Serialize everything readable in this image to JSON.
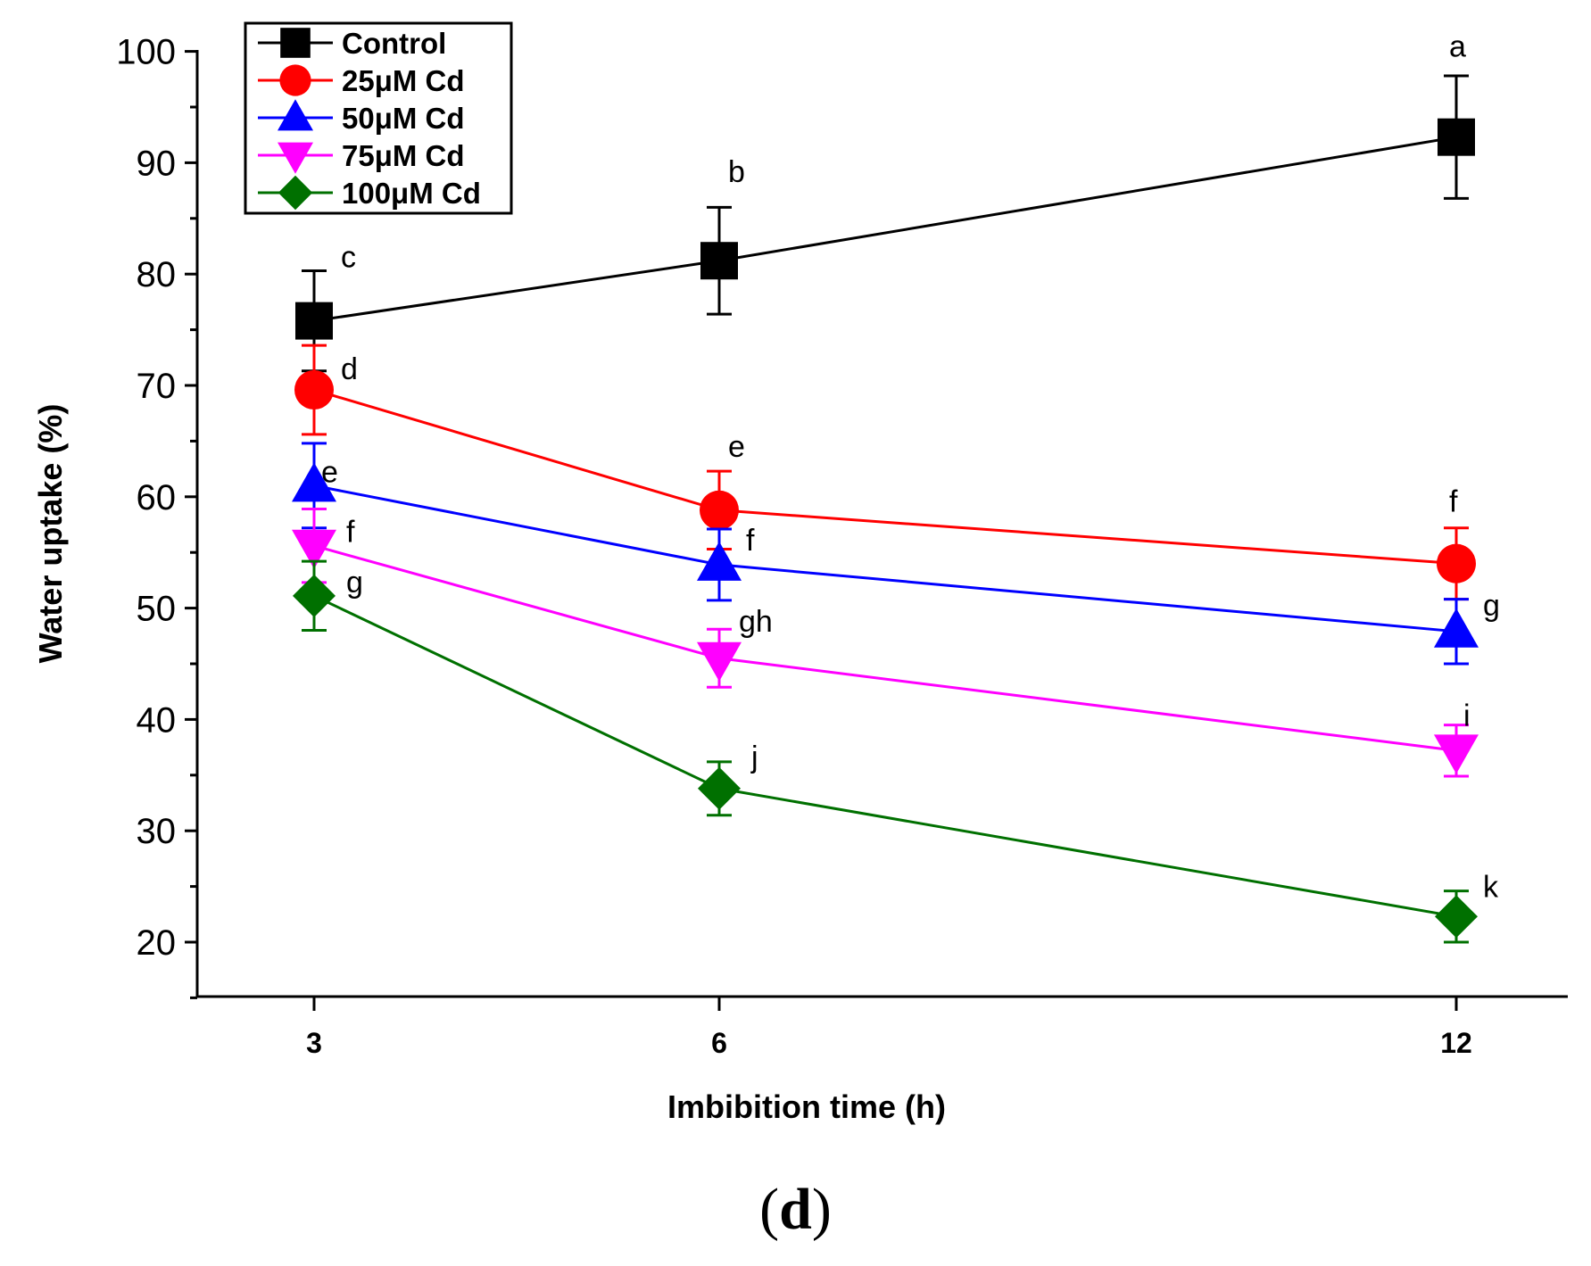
{
  "chart_data": {
    "type": "line",
    "xlabel": "Imbibition time (h)",
    "ylabel": "Water uptake (%)",
    "categories": [
      "3",
      "6",
      "12"
    ],
    "ylim": [
      15,
      100
    ],
    "yticks": [
      20,
      30,
      40,
      50,
      60,
      70,
      80,
      90,
      100
    ],
    "grid": false,
    "legend_position": "top-left",
    "series": [
      {
        "name": "Control",
        "color": "#000000",
        "marker": "square",
        "values": [
          75.8,
          81.2,
          92.3
        ],
        "errors": [
          4.5,
          4.8,
          5.5
        ],
        "letters": [
          "c",
          "b",
          "a"
        ]
      },
      {
        "name": "25μM Cd",
        "color": "#ff0000",
        "marker": "circle",
        "values": [
          69.6,
          58.8,
          54.0
        ],
        "errors": [
          4.0,
          3.5,
          3.2
        ],
        "letters": [
          "d",
          "e",
          "f"
        ]
      },
      {
        "name": "50μM Cd",
        "color": "#0000ff",
        "marker": "triangle-up",
        "values": [
          61.0,
          53.9,
          47.9
        ],
        "errors": [
          3.8,
          3.2,
          2.9
        ],
        "letters": [
          "e",
          "f",
          "g"
        ]
      },
      {
        "name": "75μM Cd",
        "color": "#ff00ff",
        "marker": "triangle-down",
        "values": [
          55.6,
          45.5,
          37.2
        ],
        "errors": [
          3.3,
          2.6,
          2.3
        ],
        "letters": [
          "f",
          "gh",
          "i"
        ]
      },
      {
        "name": "100μM Cd",
        "color": "#007000",
        "marker": "diamond",
        "values": [
          51.1,
          33.8,
          22.3
        ],
        "errors": [
          3.1,
          2.4,
          2.3
        ],
        "letters": [
          "g",
          "j",
          "k"
        ]
      }
    ]
  },
  "panel_label": "d"
}
